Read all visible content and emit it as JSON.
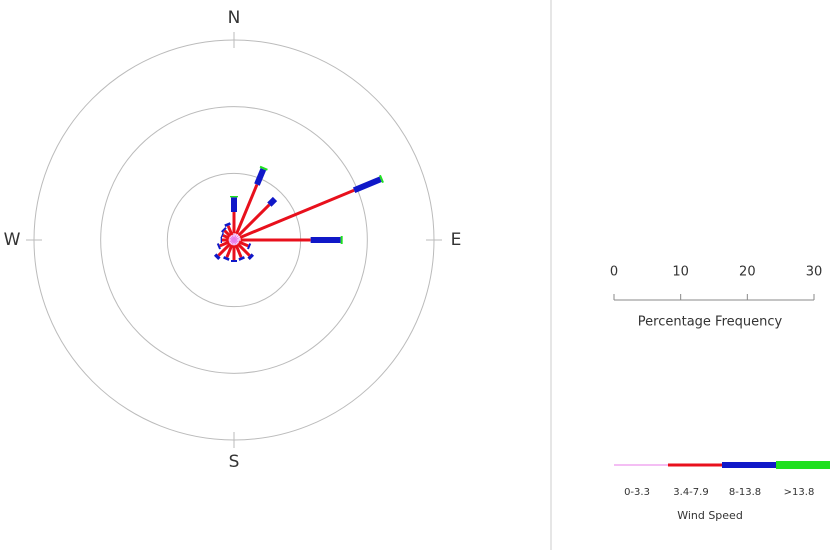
{
  "chart_data": {
    "type": "windrose",
    "categories": [
      "N",
      null,
      null,
      null,
      "E",
      null,
      null,
      null,
      "S",
      null,
      null,
      null,
      "W",
      null,
      null,
      null
    ],
    "series": [
      {
        "name": "0-3.3",
        "color": "#e87ce8",
        "values": [
          1,
          1,
          1,
          1,
          1,
          0.8,
          0.8,
          0.8,
          0.8,
          0.8,
          0.8,
          0.8,
          0.8,
          0.8,
          0.8,
          0.8
        ]
      },
      {
        "name": "3.4-7.9",
        "color": "#e8101c",
        "values": [
          3.2,
          8,
          6.5,
          18.5,
          10.5,
          1.5,
          2.5,
          2,
          2.2,
          2,
          2.5,
          1.5,
          1,
          1,
          1.2,
          1.5
        ]
      },
      {
        "name": "8-13.8",
        "color": "#1018c8",
        "values": [
          2.2,
          2.5,
          1.2,
          4.3,
          4.5,
          0.3,
          0.5,
          0.4,
          0.3,
          0.4,
          0.5,
          0.3,
          0.2,
          0.2,
          0.3,
          0.4
        ]
      },
      {
        "name": ">13.8",
        "color": "#20e020",
        "values": [
          0.2,
          0.3,
          0,
          0.3,
          0.3,
          0,
          0,
          0,
          0,
          0,
          0,
          0,
          0,
          0,
          0,
          0
        ]
      }
    ],
    "rlim": [
      0,
      30
    ],
    "rticks": [
      0,
      10,
      20,
      30
    ],
    "scale_label": "Percentage Frequency",
    "legend_title": "Wind Speed"
  }
}
